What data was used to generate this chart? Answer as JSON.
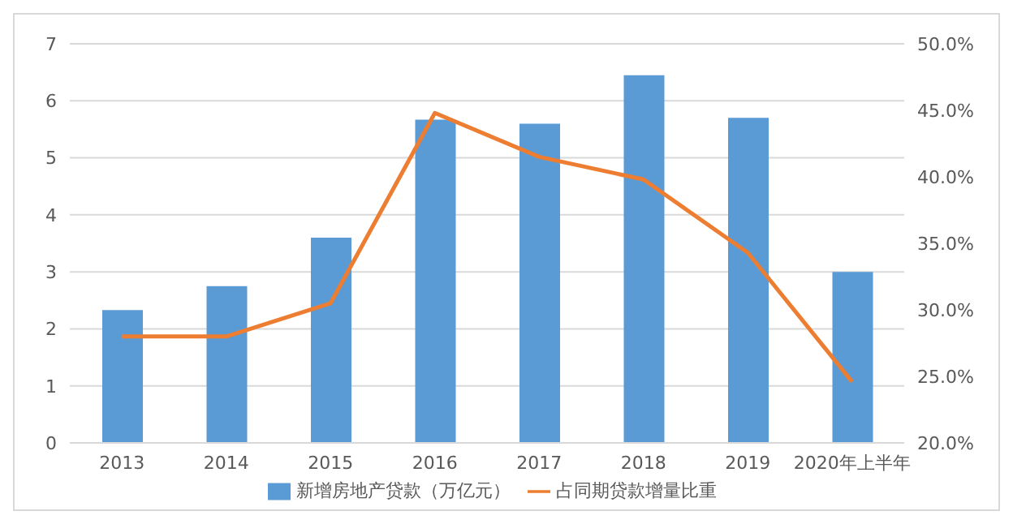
{
  "chart_data": {
    "type": "bar",
    "categories": [
      "2013",
      "2014",
      "2015",
      "2016",
      "2017",
      "2018",
      "2019",
      "2020年上半年"
    ],
    "series": [
      {
        "name": "新增房地产贷款（万亿元）",
        "color": "#5b9bd5",
        "values": [
          2.33,
          2.75,
          3.6,
          5.67,
          5.6,
          6.45,
          5.7,
          3.0
        ]
      },
      {
        "name": "占同期贷款增量比重",
        "type": "line",
        "axis": "y2",
        "color": "#ed7d31",
        "values": [
          28.0,
          28.0,
          30.5,
          44.8,
          41.5,
          39.8,
          34.3,
          24.6
        ]
      }
    ],
    "ylim": [
      0,
      7
    ],
    "yticks": [
      0,
      1,
      2,
      3,
      4,
      5,
      6,
      7
    ],
    "y2lim": [
      20,
      50
    ],
    "y2ticks": [
      {
        "value": 20,
        "label": "20.0%"
      },
      {
        "value": 25,
        "label": "25.0%"
      },
      {
        "value": 30,
        "label": "30.0%"
      },
      {
        "value": 35,
        "label": "35.0%"
      },
      {
        "value": 40,
        "label": "40.0%"
      },
      {
        "value": 45,
        "label": "45.0%"
      },
      {
        "value": 50,
        "label": "50.0%"
      }
    ],
    "grid": "y",
    "legend": "bottom",
    "marker": "none",
    "line_style": "solid"
  }
}
